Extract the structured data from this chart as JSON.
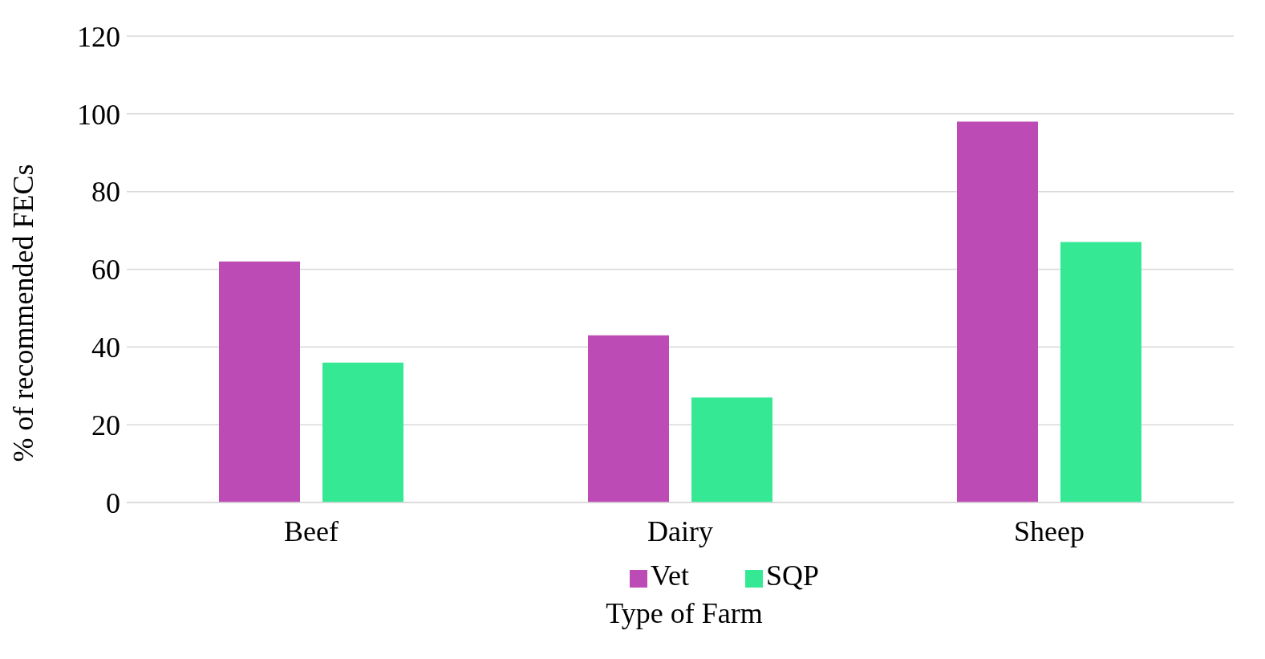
{
  "chart_data": {
    "type": "bar",
    "categories": [
      "Beef",
      "Dairy",
      "Sheep"
    ],
    "series": [
      {
        "name": "Vet",
        "color": "#bd4bb5",
        "values": [
          62,
          43,
          98
        ]
      },
      {
        "name": "SQP",
        "color": "#35e994",
        "values": [
          36,
          27,
          67
        ]
      }
    ],
    "xlabel": "Type of Farm",
    "ylabel": "% of recommended FECs",
    "ylim": [
      0,
      120
    ],
    "yticks": [
      0,
      20,
      40,
      60,
      80,
      100,
      120
    ],
    "grid": "y",
    "legend": "bottom"
  }
}
